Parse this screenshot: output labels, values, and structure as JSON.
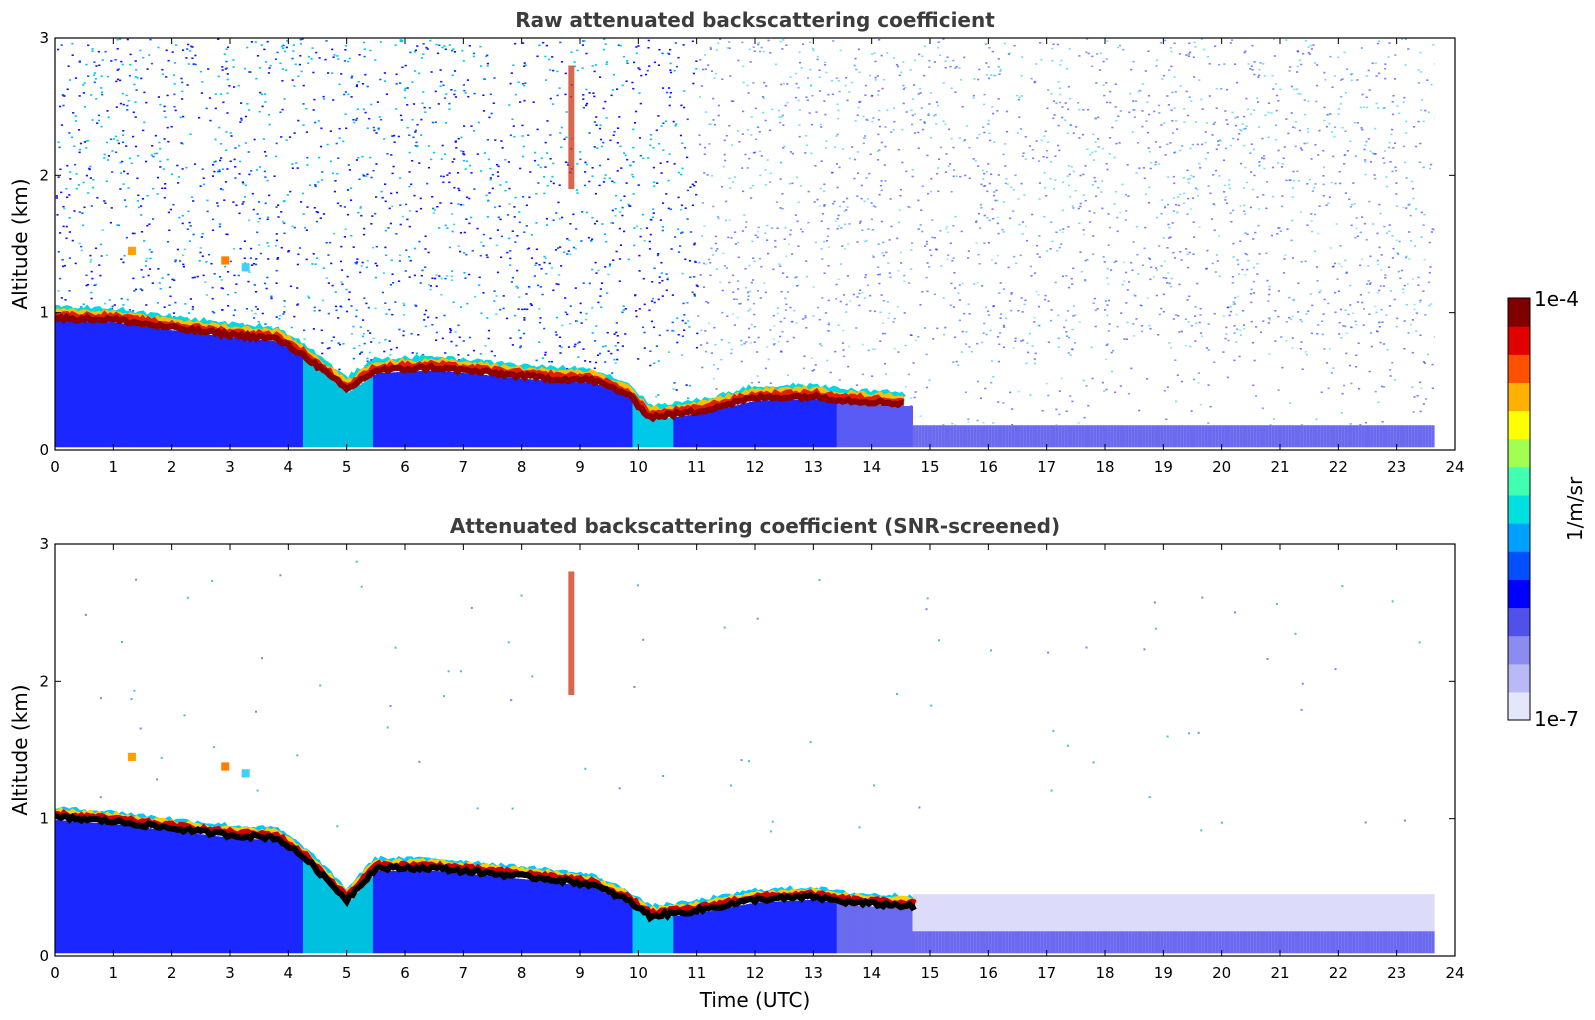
{
  "chart_data": [
    {
      "type": "heatmap",
      "title": "Raw attenuated backscattering coefficient",
      "xlabel": "",
      "ylabel": "Altitude (km)",
      "xlim": [
        0,
        24
      ],
      "ylim": [
        0,
        3
      ],
      "xticks": [
        "0",
        "1",
        "2",
        "3",
        "4",
        "5",
        "6",
        "7",
        "8",
        "9",
        "10",
        "11",
        "12",
        "13",
        "14",
        "15",
        "16",
        "17",
        "18",
        "19",
        "20",
        "21",
        "22",
        "23",
        "24"
      ],
      "yticks": [
        "0",
        "1",
        "2",
        "3"
      ],
      "data_end_time": 23.65,
      "layer_top": [
        {
          "t": 0,
          "alt": 1.0
        },
        {
          "t": 1,
          "alt": 0.99
        },
        {
          "t": 2,
          "alt": 0.93
        },
        {
          "t": 3,
          "alt": 0.88
        },
        {
          "t": 3.8,
          "alt": 0.85
        },
        {
          "t": 4.3,
          "alt": 0.72
        },
        {
          "t": 5.0,
          "alt": 0.48
        },
        {
          "t": 5.5,
          "alt": 0.62
        },
        {
          "t": 6.5,
          "alt": 0.64
        },
        {
          "t": 7.5,
          "alt": 0.6
        },
        {
          "t": 8.5,
          "alt": 0.56
        },
        {
          "t": 9.2,
          "alt": 0.55
        },
        {
          "t": 9.8,
          "alt": 0.45
        },
        {
          "t": 10.2,
          "alt": 0.28
        },
        {
          "t": 11,
          "alt": 0.32
        },
        {
          "t": 12,
          "alt": 0.42
        },
        {
          "t": 13,
          "alt": 0.43
        },
        {
          "t": 13.6,
          "alt": 0.4
        },
        {
          "t": 14.5,
          "alt": 0.38
        }
      ],
      "screened": false
    },
    {
      "type": "heatmap",
      "title": "Attenuated backscattering coefficient (SNR-screened)",
      "xlabel": "Time (UTC)",
      "ylabel": "Altitude (km)",
      "xlim": [
        0,
        24
      ],
      "ylim": [
        0,
        3
      ],
      "xticks": [
        "0",
        "1",
        "2",
        "3",
        "4",
        "5",
        "6",
        "7",
        "8",
        "9",
        "10",
        "11",
        "12",
        "13",
        "14",
        "15",
        "16",
        "17",
        "18",
        "19",
        "20",
        "21",
        "22",
        "23",
        "24"
      ],
      "yticks": [
        "0",
        "1",
        "2",
        "3"
      ],
      "data_end_time": 23.65,
      "layer_top": [
        {
          "t": 0,
          "alt": 1.05
        },
        {
          "t": 1,
          "alt": 1.02
        },
        {
          "t": 2,
          "alt": 0.97
        },
        {
          "t": 3,
          "alt": 0.92
        },
        {
          "t": 3.8,
          "alt": 0.9
        },
        {
          "t": 4.3,
          "alt": 0.75
        },
        {
          "t": 5.0,
          "alt": 0.45
        },
        {
          "t": 5.5,
          "alt": 0.68
        },
        {
          "t": 6.5,
          "alt": 0.68
        },
        {
          "t": 7.5,
          "alt": 0.64
        },
        {
          "t": 8.5,
          "alt": 0.6
        },
        {
          "t": 9.2,
          "alt": 0.56
        },
        {
          "t": 9.8,
          "alt": 0.45
        },
        {
          "t": 10.2,
          "alt": 0.33
        },
        {
          "t": 11,
          "alt": 0.37
        },
        {
          "t": 12,
          "alt": 0.45
        },
        {
          "t": 13,
          "alt": 0.47
        },
        {
          "t": 13.6,
          "alt": 0.43
        },
        {
          "t": 14.8,
          "alt": 0.4
        }
      ],
      "screened": true
    }
  ],
  "colorbar": {
    "label": "1/m/sr",
    "max_label": "1e-4",
    "min_label": "1e-7",
    "colors": [
      "#e6e6fa",
      "#b9b9f5",
      "#8c8cf0",
      "#5050eb",
      "#0000ff",
      "#0050ff",
      "#00a0ff",
      "#00e0e0",
      "#40ffb0",
      "#a0ff50",
      "#ffff00",
      "#ffb000",
      "#ff5000",
      "#e00000",
      "#800000"
    ]
  }
}
